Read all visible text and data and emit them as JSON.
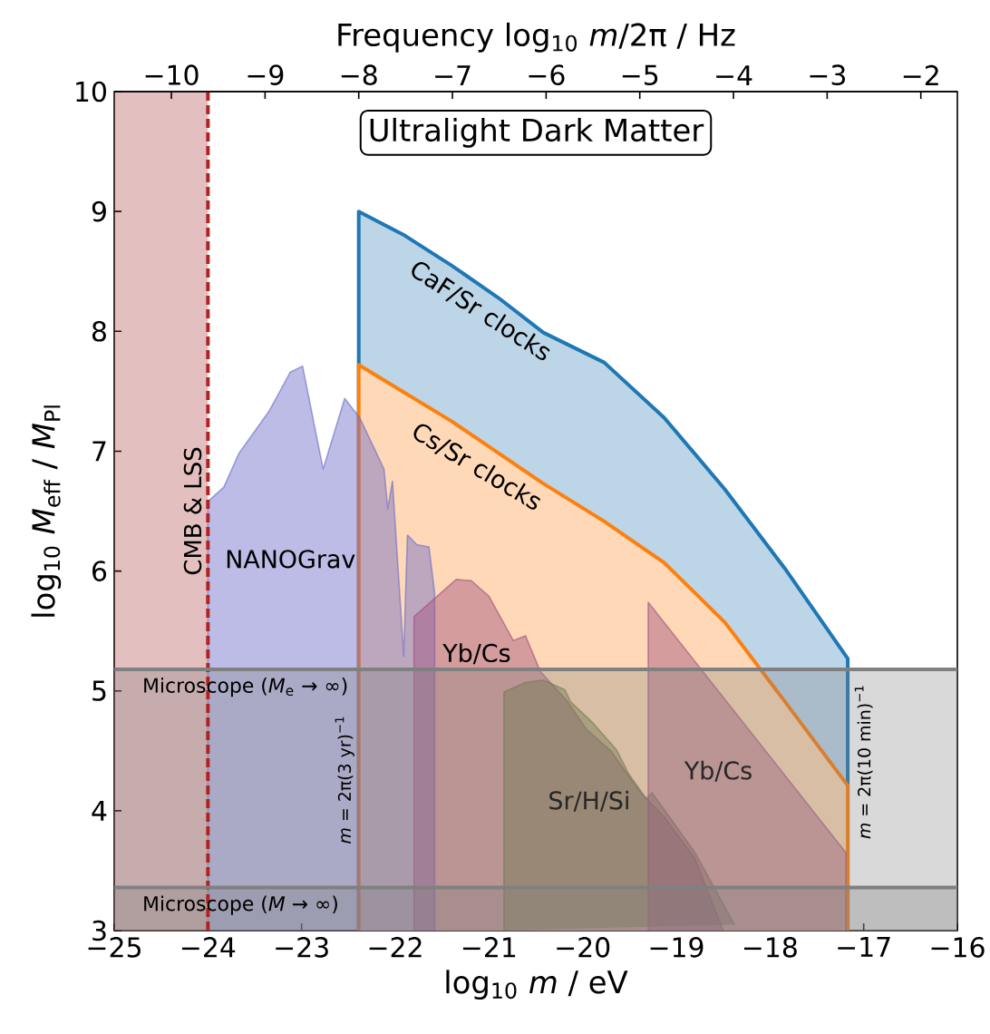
{
  "chart_data": {
    "type": "area",
    "title": "Ultralight Dark Matter",
    "xlabel": "log$_{10}$ *m* / eV",
    "ylabel": "log$_{10}$ *M*$_{eff}$ / *M*$_{Pl}$",
    "x2label": "Frequency log$_{10}$ *m*/2π / Hz",
    "xlim": [
      -25,
      -16
    ],
    "ylim": [
      3,
      10
    ],
    "x2lim": [
      -10.61,
      -1.61
    ],
    "xticks": [
      {
        "value": -25,
        "label": "−25"
      },
      {
        "value": -24,
        "label": "−24"
      },
      {
        "value": -23,
        "label": "−23"
      },
      {
        "value": -22,
        "label": "−22"
      },
      {
        "value": -21,
        "label": "−21"
      },
      {
        "value": -20,
        "label": "−20"
      },
      {
        "value": -19,
        "label": "−19"
      },
      {
        "value": -18,
        "label": "−18"
      },
      {
        "value": -17,
        "label": "−17"
      },
      {
        "value": -16,
        "label": "−16"
      }
    ],
    "yticks": [
      3,
      4,
      5,
      6,
      7,
      8,
      9,
      10
    ],
    "x2ticks": [
      {
        "value": -10,
        "label": "−10"
      },
      {
        "value": -9,
        "label": "−9"
      },
      {
        "value": -8,
        "label": "−8"
      },
      {
        "value": -7,
        "label": "−7"
      },
      {
        "value": -6,
        "label": "−6"
      },
      {
        "value": -5,
        "label": "−5"
      },
      {
        "value": -4,
        "label": "−4"
      },
      {
        "value": -3,
        "label": "−3"
      },
      {
        "value": -2,
        "label": "−2"
      }
    ],
    "series": [
      {
        "name": "CaF/Sr clocks",
        "color": "#1f77b4",
        "x": [
          -22.39,
          -22.39,
          -21.9,
          -21.4,
          -20.9,
          -20.42,
          -19.77,
          -19.13,
          -18.48,
          -17.84,
          -17.17,
          -17.17
        ],
        "values": [
          3,
          9.0,
          8.8,
          8.55,
          8.28,
          7.99,
          7.74,
          7.28,
          6.68,
          6.02,
          5.27,
          3
        ]
      },
      {
        "name": "Cs/Sr clocks",
        "color": "#ff7f0e",
        "x": [
          -22.39,
          -22.39,
          -21.4,
          -20.42,
          -19.78,
          -19.13,
          -18.48,
          -17.84,
          -17.17,
          -17.17
        ],
        "values": [
          3,
          7.72,
          7.25,
          6.73,
          6.42,
          6.07,
          5.57,
          4.91,
          4.21,
          3
        ]
      },
      {
        "name": "NANOGrav",
        "color": "#6a6ac8",
        "x": [
          -24.0,
          -24.0,
          -23.83,
          -23.67,
          -23.35,
          -23.12,
          -22.99,
          -22.77,
          -22.54,
          -22.38,
          -22.12,
          -22.08,
          -22.03,
          -21.91,
          -21.87,
          -21.77,
          -21.64,
          -21.58,
          -21.58
        ],
        "values": [
          3,
          6.58,
          6.7,
          6.98,
          7.33,
          7.66,
          7.71,
          6.85,
          7.44,
          7.28,
          6.85,
          6.52,
          6.75,
          5.29,
          6.3,
          6.22,
          6.2,
          5.82,
          3
        ]
      },
      {
        "name": "Yb/Cs",
        "color": "#a0527f",
        "x": [
          -21.8,
          -21.8,
          -21.35,
          -21.19,
          -21.0,
          -20.74,
          -20.61,
          -20.45,
          -20.16,
          -19.96,
          -19.7,
          -19.38,
          -19.13,
          -18.8,
          -18.5
        ],
        "values": [
          3,
          5.62,
          5.93,
          5.92,
          5.79,
          5.42,
          5.46,
          5.16,
          4.91,
          4.68,
          4.5,
          4.15,
          3.95,
          3.6,
          3.0
        ]
      },
      {
        "name": "Sr/H/Si",
        "color": "#6b7a3a",
        "x": [
          -20.84,
          -20.84,
          -20.61,
          -20.42,
          -20.19,
          -20.13,
          -19.9,
          -19.64,
          -19.51,
          -19.32,
          -19.26,
          -18.8,
          -18.38
        ],
        "values": [
          3,
          4.99,
          5.07,
          5.09,
          5.01,
          4.91,
          4.74,
          4.51,
          4.31,
          4.1,
          4.15,
          3.65,
          3.05
        ]
      },
      {
        "name": "Yb/Cs",
        "color": "#a0527f",
        "x": [
          -19.3,
          -19.3,
          -17.19,
          -17.19
        ],
        "values": [
          3,
          5.74,
          3.65,
          3
        ]
      }
    ],
    "bands": [
      {
        "axis": "x",
        "from": -25,
        "to": -24,
        "label": "CMB & LSS",
        "color": "#a52a2a"
      },
      {
        "axis": "y",
        "from": 3,
        "to": 5.18,
        "color": "#808080"
      },
      {
        "axis": "y",
        "from": 3,
        "to": 3.36,
        "color": "#808080"
      }
    ],
    "ref_lines": [
      {
        "axis": "x",
        "value": -24,
        "color": "#b22222",
        "line_style": "dashed"
      },
      {
        "axis": "y",
        "value": 5.18,
        "label": "Microscope (*M*$_{e}$ → ∞)",
        "color": "#808080",
        "line_style": "solid"
      },
      {
        "axis": "y",
        "value": 3.36,
        "label": "Microscope (*M* → ∞)",
        "color": "#808080",
        "line_style": "solid"
      }
    ],
    "annotations": [
      "*m* = 2π(3 yr)$^{−1}$",
      "*m* = 2π(10 min)$^{−1}$"
    ]
  }
}
